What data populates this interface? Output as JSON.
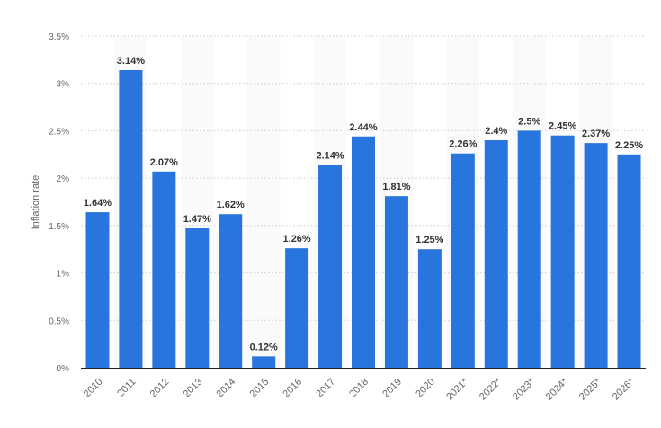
{
  "chart_data": {
    "type": "bar",
    "title": "",
    "xlabel": "",
    "ylabel": "Inflation rate",
    "ylim": [
      0,
      3.5
    ],
    "yticks": [
      "0%",
      "0.5%",
      "1%",
      "1.5%",
      "2%",
      "2.5%",
      "3%",
      "3.5%"
    ],
    "ytick_values": [
      0,
      0.5,
      1,
      1.5,
      2,
      2.5,
      3,
      3.5
    ],
    "grid": true,
    "bar_color": "#2876dd",
    "categories": [
      "2010",
      "2011",
      "2012",
      "2013",
      "2014",
      "2015",
      "2016",
      "2017",
      "2018",
      "2019",
      "2020",
      "2021*",
      "2022*",
      "2023*",
      "2024*",
      "2025*",
      "2026*"
    ],
    "values": [
      1.64,
      3.14,
      2.07,
      1.47,
      1.62,
      0.12,
      1.26,
      2.14,
      2.44,
      1.81,
      1.25,
      2.26,
      2.4,
      2.5,
      2.45,
      2.37,
      2.25
    ],
    "data_labels": [
      "1.64%",
      "3.14%",
      "2.07%",
      "1.47%",
      "1.62%",
      "0.12%",
      "1.26%",
      "2.14%",
      "2.44%",
      "1.81%",
      "1.25%",
      "2.26%",
      "2.4%",
      "2.5%",
      "2.45%",
      "2.37%",
      "2.25%"
    ]
  }
}
